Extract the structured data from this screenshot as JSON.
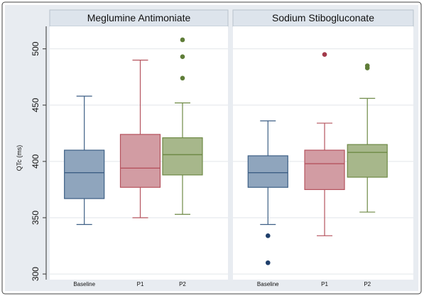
{
  "chart_data": {
    "type": "boxplot",
    "ylabel": "QTc (ms)",
    "ylim": [
      295,
      520
    ],
    "yticks": [
      300,
      350,
      400,
      450,
      500
    ],
    "grid": true,
    "categories": [
      "Baseline",
      "P1",
      "P2"
    ],
    "colors": {
      "Baseline": {
        "fill": "#8fa5bd",
        "stroke": "#3d5f85",
        "outlier": "#1f3f6b"
      },
      "P1": {
        "fill": "#d29ca3",
        "stroke": "#b5535e",
        "outlier": "#a23a4a"
      },
      "P2": {
        "fill": "#a7b78b",
        "stroke": "#6e8a46",
        "outlier": "#5f7d38"
      }
    },
    "panels": [
      {
        "title": "Meglumine Antimoniate",
        "boxes": [
          {
            "category": "Baseline",
            "whisker_low": 344,
            "q1": 367,
            "median": 390,
            "q3": 410,
            "whisker_high": 458,
            "outliers": []
          },
          {
            "category": "P1",
            "whisker_low": 350,
            "q1": 377,
            "median": 394,
            "q3": 424,
            "whisker_high": 490,
            "outliers": []
          },
          {
            "category": "P2",
            "whisker_low": 353,
            "q1": 388,
            "median": 406,
            "q3": 421,
            "whisker_high": 452,
            "outliers": [
              474,
              493,
              508
            ]
          }
        ]
      },
      {
        "title": "Sodium Stibogluconate",
        "boxes": [
          {
            "category": "Baseline",
            "whisker_low": 344,
            "q1": 377,
            "median": 390,
            "q3": 405,
            "whisker_high": 436,
            "outliers": [
              334,
              310
            ]
          },
          {
            "category": "P1",
            "whisker_low": 334,
            "q1": 375,
            "median": 398,
            "q3": 410,
            "whisker_high": 434,
            "outliers": [
              495
            ]
          },
          {
            "category": "P2",
            "whisker_low": 355,
            "q1": 386,
            "median": 408,
            "q3": 415,
            "whisker_high": 456,
            "outliers": [
              483,
              485
            ]
          }
        ]
      }
    ]
  }
}
